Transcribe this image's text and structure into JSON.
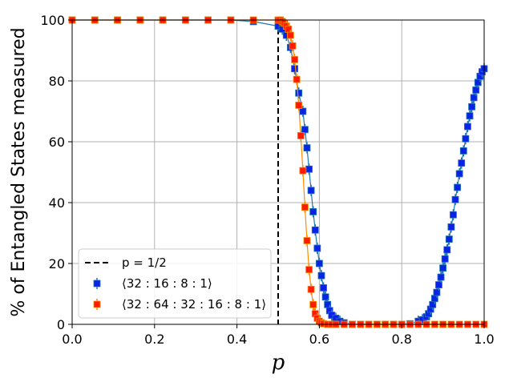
{
  "chart_data": {
    "type": "scatter",
    "xlabel": "p",
    "ylabel": "% of Entangled States measured",
    "xlim": [
      0.0,
      1.0
    ],
    "ylim": [
      0,
      100
    ],
    "x_ticks": [
      "0.0",
      "0.2",
      "0.4",
      "0.6",
      "0.8",
      "1.0"
    ],
    "y_ticks": [
      "0",
      "20",
      "40",
      "60",
      "80",
      "100"
    ],
    "grid": true,
    "legend_position": "lower-left",
    "reference_line": {
      "label": "p = 1/2",
      "x": 0.5,
      "style": "dashed",
      "color": "#000000"
    },
    "series": [
      {
        "name": "⟨32 : 16 : 8 : 1⟩",
        "color": "#0a22e6",
        "errorbar_color": "#1f77b4",
        "x": [
          0.0,
          0.055,
          0.11,
          0.165,
          0.22,
          0.275,
          0.33,
          0.385,
          0.44,
          0.5,
          0.51,
          0.52,
          0.53,
          0.54,
          0.55,
          0.56,
          0.565,
          0.57,
          0.575,
          0.58,
          0.585,
          0.59,
          0.595,
          0.6,
          0.605,
          0.61,
          0.615,
          0.62,
          0.625,
          0.63,
          0.64,
          0.65,
          0.66,
          0.68,
          0.7,
          0.72,
          0.74,
          0.76,
          0.78,
          0.8,
          0.82,
          0.84,
          0.85,
          0.86,
          0.865,
          0.87,
          0.875,
          0.88,
          0.885,
          0.89,
          0.895,
          0.9,
          0.905,
          0.91,
          0.915,
          0.92,
          0.925,
          0.93,
          0.935,
          0.94,
          0.945,
          0.95,
          0.955,
          0.96,
          0.965,
          0.97,
          0.975,
          0.98,
          0.985,
          0.99,
          0.995,
          1.0
        ],
        "values": [
          100,
          100,
          100,
          100,
          100,
          100,
          100,
          100,
          99.5,
          98,
          97,
          95,
          91,
          84,
          76,
          70,
          64,
          58,
          51,
          44,
          37,
          31,
          25,
          20,
          16,
          12,
          9,
          6.5,
          4.5,
          3,
          2,
          1,
          0.5,
          0,
          0,
          0,
          0,
          0,
          0,
          0,
          0.2,
          1,
          1.5,
          2.5,
          3.5,
          5,
          6.5,
          8.5,
          10.5,
          13,
          15.5,
          18.5,
          21.5,
          24.5,
          28,
          32,
          36,
          41,
          45,
          49.5,
          53,
          57,
          61,
          65,
          68.5,
          71.5,
          74.5,
          77,
          79.5,
          81.5,
          83,
          84
        ]
      },
      {
        "name": "⟨32 : 64 : 32 : 16 : 8 : 1⟩",
        "color": "#ff1a00",
        "errorbar_color": "#ff8c00",
        "x": [
          0.0,
          0.055,
          0.11,
          0.165,
          0.22,
          0.275,
          0.33,
          0.385,
          0.44,
          0.5,
          0.505,
          0.51,
          0.515,
          0.52,
          0.525,
          0.53,
          0.535,
          0.54,
          0.545,
          0.55,
          0.555,
          0.56,
          0.565,
          0.57,
          0.575,
          0.58,
          0.585,
          0.59,
          0.595,
          0.6,
          0.605,
          0.61,
          0.62,
          0.63,
          0.64,
          0.66,
          0.68,
          0.7,
          0.72,
          0.74,
          0.76,
          0.78,
          0.8,
          0.82,
          0.84,
          0.86,
          0.88,
          0.9,
          0.92,
          0.94,
          0.96,
          0.98,
          1.0
        ],
        "values": [
          100,
          100,
          100,
          100,
          100,
          100,
          100,
          100,
          100,
          100,
          100,
          99.5,
          99,
          98,
          97,
          95,
          91.5,
          87,
          80.5,
          72,
          62,
          50.5,
          38.5,
          27.5,
          18,
          11.5,
          6.5,
          3.5,
          2,
          1,
          0.5,
          0.2,
          0,
          0,
          0,
          0,
          0,
          0,
          0,
          0,
          0,
          0,
          0,
          0,
          0,
          0,
          0,
          0,
          0,
          0,
          0,
          0,
          0
        ]
      }
    ]
  }
}
